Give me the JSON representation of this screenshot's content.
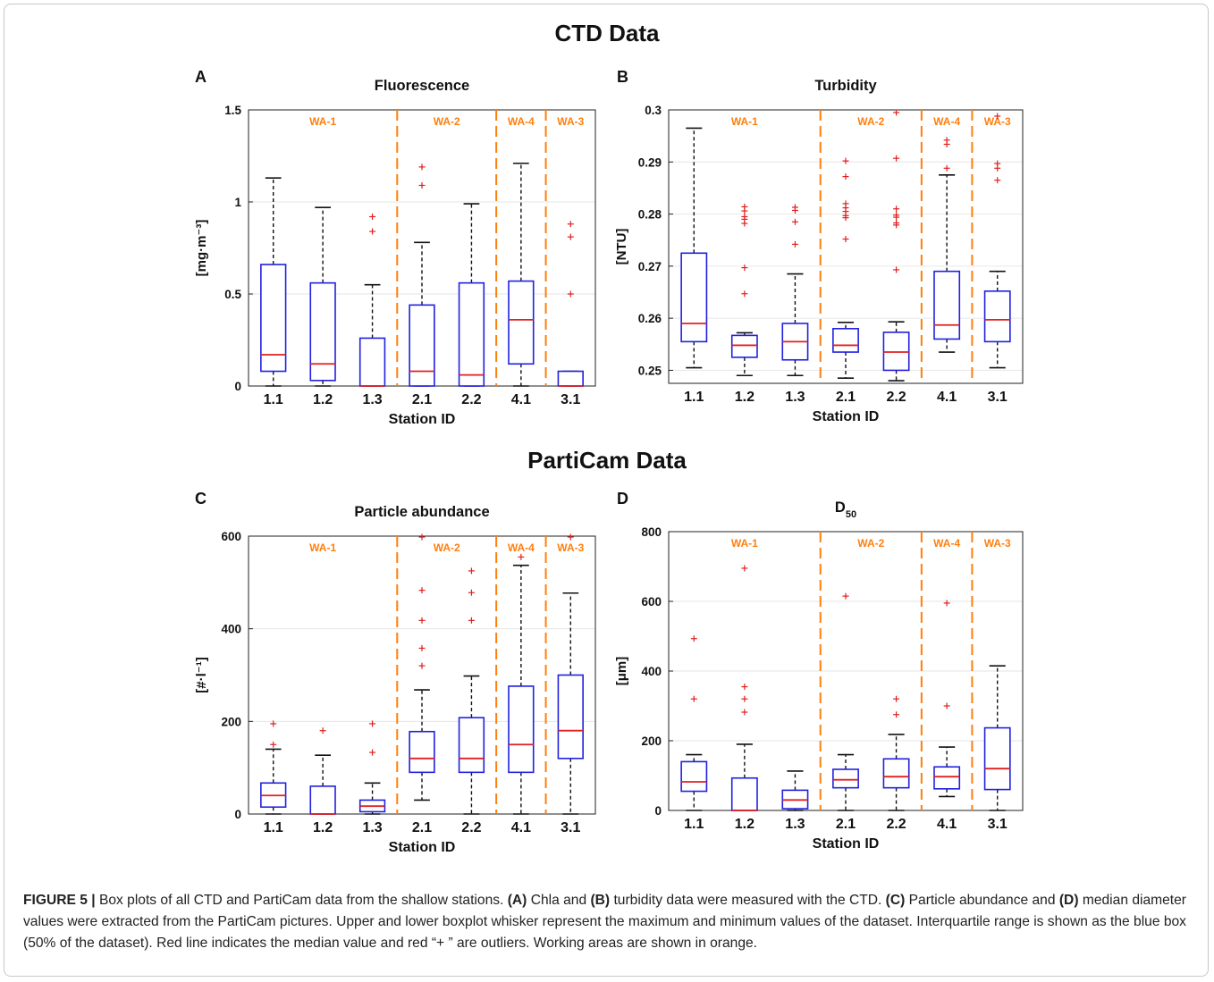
{
  "figure_titles": {
    "ctd": "CTD Data",
    "particam": "PartiCam Data"
  },
  "caption": {
    "figure_label": "FIGURE 5 |",
    "text_1": " Box plots of all CTD and PartiCam data from the shallow stations. ",
    "ref_a": "(A)",
    "text_2": " Chla and ",
    "ref_b": "(B)",
    "text_3": " turbidity data were measured with the CTD. ",
    "ref_c": "(C)",
    "text_4": " Particle abundance and ",
    "ref_d": "(D)",
    "text_5": " median diameter values were extracted from the PartiCam pictures. Upper and lower boxplot whisker represent the maximum and minimum values of the dataset. Interquartile range is shown as the blue box (50% of the dataset). Red line indicates the median value and red “+ ” are outliers. Working areas are shown in orange."
  },
  "colors": {
    "box": "#2020e0",
    "median": "#e02020",
    "outlier": "#e02020",
    "whisker": "#111111",
    "working_area": "#ff7f0e",
    "grid": "#e6e6e6"
  },
  "chart_data": [
    {
      "panel": "A",
      "type": "box",
      "title": "Fluorescence",
      "xlabel": "Station ID",
      "ylabel": "[mg·m⁻³]",
      "categories": [
        "1.1",
        "1.2",
        "1.3",
        "2.1",
        "2.2",
        "4.1",
        "3.1"
      ],
      "ylim": [
        0,
        1.5
      ],
      "yticks": [
        0,
        0.5,
        1,
        1.5
      ],
      "ytick_labels": [
        "0",
        "0.5",
        "1",
        "1.5"
      ],
      "grid": true,
      "working_areas": [
        {
          "label": "WA-1",
          "from": 0,
          "to": 3
        },
        {
          "label": "WA-2",
          "from": 3,
          "to": 5
        },
        {
          "label": "WA-4",
          "from": 5,
          "to": 6
        },
        {
          "label": "WA-3",
          "from": 6,
          "to": 7
        }
      ],
      "boxes": [
        {
          "min": 0,
          "q1": 0.08,
          "median": 0.17,
          "q3": 0.66,
          "max": 1.13,
          "outliers": []
        },
        {
          "min": 0,
          "q1": 0.03,
          "median": 0.12,
          "q3": 0.56,
          "max": 0.97,
          "outliers": []
        },
        {
          "min": 0,
          "q1": 0,
          "median": 0,
          "q3": 0.26,
          "max": 0.55,
          "outliers": [
            0.92,
            0.84
          ]
        },
        {
          "min": 0,
          "q1": 0,
          "median": 0.08,
          "q3": 0.44,
          "max": 0.78,
          "outliers": [
            1.19,
            1.09
          ]
        },
        {
          "min": 0,
          "q1": 0,
          "median": 0.06,
          "q3": 0.56,
          "max": 0.99,
          "outliers": []
        },
        {
          "min": 0,
          "q1": 0.12,
          "median": 0.36,
          "q3": 0.57,
          "max": 1.21,
          "outliers": []
        },
        {
          "min": 0,
          "q1": 0,
          "median": 0,
          "q3": 0.08,
          "max": 0.08,
          "outliers": [
            0.88,
            0.81,
            0.5
          ]
        }
      ]
    },
    {
      "panel": "B",
      "type": "box",
      "title": "Turbidity",
      "xlabel": "Station ID",
      "ylabel": "[NTU]",
      "categories": [
        "1.1",
        "1.2",
        "1.3",
        "2.1",
        "2.2",
        "4.1",
        "3.1"
      ],
      "ylim": [
        0.2475,
        0.3
      ],
      "yticks": [
        0.25,
        0.26,
        0.27,
        0.28,
        0.29,
        0.3
      ],
      "ytick_labels": [
        "0.25",
        "0.26",
        "0.27",
        "0.28",
        "0.29",
        "0.3"
      ],
      "grid": true,
      "working_areas": [
        {
          "label": "WA-1",
          "from": 0,
          "to": 3
        },
        {
          "label": "WA-2",
          "from": 3,
          "to": 5
        },
        {
          "label": "WA-4",
          "from": 5,
          "to": 6
        },
        {
          "label": "WA-3",
          "from": 6,
          "to": 7
        }
      ],
      "boxes": [
        {
          "min": 0.2505,
          "q1": 0.2555,
          "median": 0.259,
          "q3": 0.2725,
          "max": 0.2965,
          "outliers": []
        },
        {
          "min": 0.249,
          "q1": 0.2525,
          "median": 0.2548,
          "q3": 0.2567,
          "max": 0.2572,
          "outliers": [
            0.2814,
            0.2806,
            0.2795,
            0.279,
            0.2782,
            0.2697,
            0.2647
          ]
        },
        {
          "min": 0.249,
          "q1": 0.252,
          "median": 0.2555,
          "q3": 0.259,
          "max": 0.2685,
          "outliers": [
            0.2813,
            0.2807,
            0.2785,
            0.2742
          ]
        },
        {
          "min": 0.2485,
          "q1": 0.2535,
          "median": 0.2548,
          "q3": 0.258,
          "max": 0.2592,
          "outliers": [
            0.2902,
            0.2872,
            0.282,
            0.2812,
            0.2805,
            0.2797,
            0.2793,
            0.2752
          ]
        },
        {
          "min": 0.248,
          "q1": 0.25,
          "median": 0.2535,
          "q3": 0.2573,
          "max": 0.2593,
          "outliers": [
            0.2995,
            0.2907,
            0.281,
            0.2798,
            0.2794,
            0.2783,
            0.2779,
            0.2693
          ]
        },
        {
          "min": 0.2535,
          "q1": 0.256,
          "median": 0.2587,
          "q3": 0.269,
          "max": 0.2875,
          "outliers": [
            0.2942,
            0.2934,
            0.2888
          ]
        },
        {
          "min": 0.2505,
          "q1": 0.2555,
          "median": 0.2597,
          "q3": 0.2652,
          "max": 0.269,
          "outliers": [
            0.2988,
            0.2897,
            0.2888,
            0.2865
          ]
        }
      ]
    },
    {
      "panel": "C",
      "type": "box",
      "title": "Particle abundance",
      "xlabel": "Station ID",
      "ylabel": "[#·l⁻¹]",
      "categories": [
        "1.1",
        "1.2",
        "1.3",
        "2.1",
        "2.2",
        "4.1",
        "3.1"
      ],
      "ylim": [
        0,
        600
      ],
      "yticks": [
        0,
        200,
        400,
        600
      ],
      "ytick_labels": [
        "0",
        "200",
        "400",
        "600"
      ],
      "grid": true,
      "working_areas": [
        {
          "label": "WA-1",
          "from": 0,
          "to": 3
        },
        {
          "label": "WA-2",
          "from": 3,
          "to": 5
        },
        {
          "label": "WA-4",
          "from": 5,
          "to": 6
        },
        {
          "label": "WA-3",
          "from": 6,
          "to": 7
        }
      ],
      "boxes": [
        {
          "min": 0,
          "q1": 15,
          "median": 40,
          "q3": 67,
          "max": 140,
          "outliers": [
            195,
            150
          ]
        },
        {
          "min": 0,
          "q1": 0,
          "median": 0,
          "q3": 60,
          "max": 127,
          "outliers": [
            180
          ]
        },
        {
          "min": 0,
          "q1": 5,
          "median": 17,
          "q3": 30,
          "max": 67,
          "outliers": [
            195,
            133
          ]
        },
        {
          "min": 30,
          "q1": 90,
          "median": 120,
          "q3": 178,
          "max": 268,
          "outliers": [
            598,
            483,
            418,
            358,
            320
          ]
        },
        {
          "min": 0,
          "q1": 90,
          "median": 120,
          "q3": 208,
          "max": 298,
          "outliers": [
            525,
            478,
            418
          ]
        },
        {
          "min": 0,
          "q1": 90,
          "median": 150,
          "q3": 276,
          "max": 537,
          "outliers": [
            555
          ]
        },
        {
          "min": 0,
          "q1": 120,
          "median": 180,
          "q3": 300,
          "max": 477,
          "outliers": [
            598
          ]
        }
      ]
    },
    {
      "panel": "D",
      "type": "box",
      "title": "D",
      "title_subscript": "50",
      "xlabel": "Station ID",
      "ylabel": "[μm]",
      "categories": [
        "1.1",
        "1.2",
        "1.3",
        "2.1",
        "2.2",
        "4.1",
        "3.1"
      ],
      "ylim": [
        0,
        800
      ],
      "yticks": [
        0,
        200,
        400,
        600,
        800
      ],
      "ytick_labels": [
        "0",
        "200",
        "400",
        "600",
        "800"
      ],
      "grid": true,
      "working_areas": [
        {
          "label": "WA-1",
          "from": 0,
          "to": 3
        },
        {
          "label": "WA-2",
          "from": 3,
          "to": 5
        },
        {
          "label": "WA-4",
          "from": 5,
          "to": 6
        },
        {
          "label": "WA-3",
          "from": 6,
          "to": 7
        }
      ],
      "boxes": [
        {
          "min": 0,
          "q1": 55,
          "median": 82,
          "q3": 140,
          "max": 160,
          "outliers": [
            493,
            320
          ]
        },
        {
          "min": 0,
          "q1": 0,
          "median": 0,
          "q3": 93,
          "max": 190,
          "outliers": [
            695,
            355,
            320,
            282
          ]
        },
        {
          "min": 0,
          "q1": 5,
          "median": 30,
          "q3": 58,
          "max": 113,
          "outliers": []
        },
        {
          "min": 0,
          "q1": 65,
          "median": 88,
          "q3": 118,
          "max": 160,
          "outliers": [
            615
          ]
        },
        {
          "min": 0,
          "q1": 65,
          "median": 97,
          "q3": 148,
          "max": 218,
          "outliers": [
            320,
            275
          ]
        },
        {
          "min": 40,
          "q1": 62,
          "median": 97,
          "q3": 125,
          "max": 182,
          "outliers": [
            595,
            300
          ]
        },
        {
          "min": 0,
          "q1": 60,
          "median": 120,
          "q3": 237,
          "max": 415,
          "outliers": []
        }
      ]
    }
  ]
}
